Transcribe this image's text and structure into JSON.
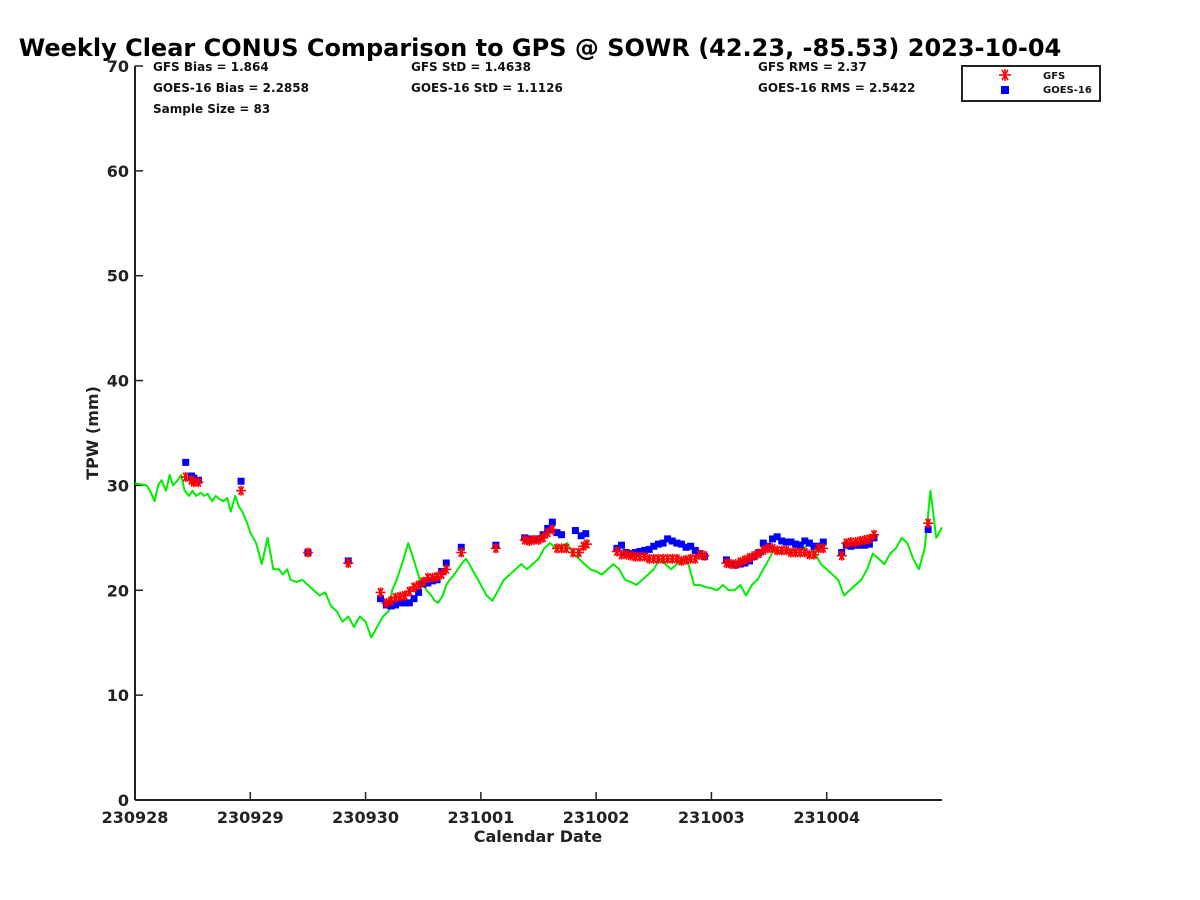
{
  "chart_data": {
    "type": "scatter",
    "title": "Weekly Clear CONUS Comparison to GPS @ SOWR (42.23, -85.53) 2023-10-04",
    "xlabel": "Calendar Date",
    "ylabel": "TPW (mm)",
    "xlim": [
      0,
      7.0
    ],
    "ylim": [
      0,
      70
    ],
    "x_tick_labels": [
      "230928",
      "230929",
      "230930",
      "231001",
      "231002",
      "231003",
      "231004"
    ],
    "x_tick_values": [
      0,
      1,
      2,
      3,
      4,
      5,
      6
    ],
    "y_ticks": [
      0,
      10,
      20,
      30,
      40,
      50,
      60,
      70
    ],
    "stats": [
      {
        "label": "GFS Bias = 1.864"
      },
      {
        "label": "GOES-16 Bias = 2.2858"
      },
      {
        "label": "Sample Size = 83"
      },
      {
        "label": "GFS StD = 1.4638"
      },
      {
        "label": "GOES-16 StD = 1.1126"
      },
      {
        "label": "GFS RMS = 2.37"
      },
      {
        "label": "GOES-16 RMS = 2.5422"
      }
    ],
    "legend": {
      "placement": "top-right",
      "entries": [
        {
          "name": "GFS",
          "marker": "asterisk",
          "color": "#ff0000"
        },
        {
          "name": "GOES-16",
          "marker": "square",
          "color": "#0000ff"
        }
      ]
    },
    "colors": {
      "gfs": "#ff0000",
      "goes": "#0000ff",
      "gps": "#00ee00"
    },
    "series": [
      {
        "name": "GFS",
        "x": [
          0.44,
          0.49,
          0.51,
          0.55,
          0.92,
          1.5,
          1.85,
          2.13,
          2.18,
          2.22,
          2.26,
          2.3,
          2.34,
          2.38,
          2.42,
          2.46,
          2.5,
          2.54,
          2.58,
          2.62,
          2.66,
          2.7,
          2.83,
          3.13,
          3.38,
          3.42,
          3.46,
          3.5,
          3.54,
          3.58,
          3.62,
          3.66,
          3.7,
          3.74,
          3.8,
          3.85,
          3.89,
          3.92,
          4.18,
          4.22,
          4.26,
          4.3,
          4.34,
          4.38,
          4.42,
          4.46,
          4.5,
          4.54,
          4.58,
          4.62,
          4.66,
          4.7,
          4.74,
          4.78,
          4.82,
          4.86,
          4.9,
          4.94,
          5.13,
          5.17,
          5.21,
          5.25,
          5.29,
          5.33,
          5.37,
          5.41,
          5.45,
          5.49,
          5.53,
          5.57,
          5.61,
          5.65,
          5.69,
          5.73,
          5.77,
          5.81,
          5.85,
          5.89,
          5.93,
          5.97,
          6.13,
          6.17,
          6.21,
          6.25,
          6.29,
          6.33,
          6.37,
          6.41,
          6.88
        ],
        "y": [
          30.8,
          30.5,
          30.3,
          30.3,
          29.5,
          23.6,
          22.6,
          19.8,
          18.8,
          19.0,
          19.3,
          19.4,
          19.5,
          19.9,
          20.3,
          20.5,
          20.8,
          21.2,
          21.2,
          21.3,
          21.5,
          22.0,
          23.6,
          24.0,
          24.8,
          24.7,
          24.8,
          24.8,
          25.0,
          25.5,
          25.8,
          24.0,
          24.0,
          24.0,
          23.6,
          23.6,
          24.2,
          24.4,
          23.7,
          23.4,
          23.4,
          23.3,
          23.2,
          23.2,
          23.2,
          23.0,
          23.0,
          23.0,
          23.0,
          23.0,
          23.0,
          23.0,
          22.8,
          22.9,
          23.0,
          23.0,
          23.4,
          23.3,
          22.6,
          22.5,
          22.5,
          22.7,
          22.9,
          23.1,
          23.3,
          23.5,
          23.8,
          24.0,
          24.0,
          23.8,
          23.8,
          23.8,
          23.6,
          23.6,
          23.6,
          23.6,
          23.4,
          23.4,
          24.0,
          24.0,
          23.3,
          24.5,
          24.6,
          24.6,
          24.7,
          24.8,
          24.9,
          25.3,
          26.4
        ]
      },
      {
        "name": "GOES-16",
        "x": [
          0.44,
          0.49,
          0.51,
          0.55,
          0.92,
          1.5,
          1.85,
          2.13,
          2.18,
          2.22,
          2.26,
          2.3,
          2.34,
          2.38,
          2.42,
          2.46,
          2.5,
          2.54,
          2.58,
          2.62,
          2.66,
          2.7,
          2.83,
          3.13,
          3.38,
          3.42,
          3.46,
          3.5,
          3.54,
          3.58,
          3.62,
          3.66,
          3.7,
          3.82,
          3.87,
          3.91,
          4.18,
          4.22,
          4.26,
          4.3,
          4.34,
          4.38,
          4.42,
          4.46,
          4.5,
          4.54,
          4.58,
          4.62,
          4.66,
          4.7,
          4.74,
          4.78,
          4.82,
          4.86,
          4.9,
          4.94,
          5.13,
          5.17,
          5.21,
          5.25,
          5.29,
          5.33,
          5.37,
          5.41,
          5.45,
          5.49,
          5.53,
          5.57,
          5.61,
          5.65,
          5.69,
          5.73,
          5.77,
          5.81,
          5.85,
          5.89,
          5.93,
          5.97,
          6.13,
          6.17,
          6.21,
          6.25,
          6.29,
          6.33,
          6.37,
          6.41,
          6.88
        ],
        "y": [
          32.2,
          30.9,
          30.7,
          30.5,
          30.4,
          23.6,
          22.8,
          19.2,
          18.6,
          18.5,
          18.6,
          18.8,
          18.8,
          18.8,
          19.2,
          19.8,
          20.6,
          20.7,
          20.9,
          21.0,
          21.8,
          22.6,
          24.1,
          24.3,
          25.0,
          24.9,
          24.8,
          24.9,
          25.3,
          25.9,
          26.5,
          25.5,
          25.3,
          25.7,
          25.2,
          25.4,
          24.0,
          24.3,
          23.6,
          23.5,
          23.6,
          23.7,
          23.8,
          23.9,
          24.2,
          24.4,
          24.5,
          24.9,
          24.7,
          24.5,
          24.4,
          24.1,
          24.2,
          23.8,
          23.5,
          23.2,
          22.9,
          22.5,
          22.4,
          22.5,
          22.6,
          22.8,
          23.2,
          23.6,
          24.5,
          24.2,
          24.9,
          25.1,
          24.7,
          24.6,
          24.6,
          24.4,
          24.3,
          24.7,
          24.5,
          24.2,
          24.2,
          24.6,
          23.6,
          24.3,
          24.2,
          24.3,
          24.3,
          24.3,
          24.4,
          25.0,
          25.8
        ]
      },
      {
        "name": "GPS",
        "x": [
          0.0,
          0.05,
          0.1,
          0.13,
          0.17,
          0.2,
          0.23,
          0.27,
          0.3,
          0.33,
          0.37,
          0.4,
          0.43,
          0.47,
          0.5,
          0.53,
          0.57,
          0.6,
          0.63,
          0.67,
          0.7,
          0.73,
          0.77,
          0.8,
          0.83,
          0.87,
          0.9,
          0.93,
          0.97,
          1.0,
          1.05,
          1.1,
          1.15,
          1.2,
          1.25,
          1.28,
          1.32,
          1.35,
          1.4,
          1.45,
          1.5,
          1.55,
          1.6,
          1.65,
          1.7,
          1.75,
          1.8,
          1.85,
          1.9,
          1.95,
          2.0,
          2.05,
          2.1,
          2.15,
          2.2,
          2.23,
          2.27,
          2.3,
          2.33,
          2.37,
          2.4,
          2.43,
          2.47,
          2.5,
          2.53,
          2.57,
          2.6,
          2.63,
          2.67,
          2.7,
          2.73,
          2.77,
          2.8,
          2.83,
          2.87,
          2.9,
          2.95,
          3.0,
          3.05,
          3.1,
          3.15,
          3.2,
          3.25,
          3.3,
          3.35,
          3.4,
          3.45,
          3.5,
          3.55,
          3.6,
          3.65,
          3.7,
          3.75,
          3.8,
          3.85,
          3.9,
          3.95,
          4.0,
          4.05,
          4.1,
          4.15,
          4.2,
          4.25,
          4.3,
          4.35,
          4.4,
          4.45,
          4.5,
          4.55,
          4.6,
          4.65,
          4.7,
          4.75,
          4.8,
          4.85,
          4.9,
          4.95,
          5.0,
          5.05,
          5.1,
          5.15,
          5.2,
          5.25,
          5.3,
          5.35,
          5.4,
          5.45,
          5.5,
          5.55,
          5.6,
          5.65,
          5.7,
          5.75,
          5.8,
          5.85,
          5.9,
          5.95,
          6.0,
          6.05,
          6.1,
          6.15,
          6.2,
          6.25,
          6.3,
          6.35,
          6.4,
          6.45,
          6.5,
          6.55,
          6.6,
          6.65,
          6.7,
          6.75,
          6.8,
          6.85,
          6.9,
          6.95,
          7.0
        ],
        "y": [
          30.2,
          30.1,
          30.0,
          29.5,
          28.5,
          30.0,
          30.5,
          29.5,
          31.0,
          30.0,
          30.5,
          31.0,
          29.5,
          29.0,
          29.5,
          29.0,
          29.3,
          29.0,
          29.2,
          28.5,
          29.0,
          28.7,
          28.5,
          28.8,
          27.5,
          29.0,
          28.0,
          27.5,
          26.5,
          25.5,
          24.5,
          22.5,
          25.0,
          22.0,
          22.0,
          21.5,
          22.0,
          21.0,
          20.8,
          21.0,
          20.5,
          20.0,
          19.5,
          19.8,
          18.5,
          18.0,
          17.0,
          17.5,
          16.5,
          17.5,
          17.0,
          15.5,
          16.5,
          17.5,
          18.0,
          20.0,
          21.0,
          22.0,
          23.0,
          24.5,
          23.5,
          22.5,
          21.0,
          20.5,
          20.0,
          19.5,
          19.0,
          18.8,
          19.5,
          20.5,
          21.0,
          21.5,
          22.0,
          22.5,
          23.0,
          22.5,
          21.5,
          20.5,
          19.5,
          19.0,
          20.0,
          21.0,
          21.5,
          22.0,
          22.5,
          22.0,
          22.5,
          23.0,
          24.0,
          24.5,
          24.0,
          24.2,
          24.5,
          23.5,
          23.0,
          22.5,
          22.0,
          21.8,
          21.5,
          22.0,
          22.5,
          22.0,
          21.0,
          20.8,
          20.5,
          21.0,
          21.5,
          22.0,
          23.0,
          22.5,
          22.0,
          22.5,
          23.0,
          22.5,
          20.5,
          20.5,
          20.3,
          20.2,
          20.0,
          20.5,
          20.0,
          20.0,
          20.5,
          19.5,
          20.5,
          21.0,
          22.0,
          23.0,
          24.0,
          23.5,
          24.0,
          23.5,
          24.5,
          24.0,
          24.5,
          23.5,
          22.5,
          22.0,
          21.5,
          21.0,
          19.5,
          20.0,
          20.5,
          21.0,
          22.0,
          23.5,
          23.0,
          22.5,
          23.5,
          24.0,
          25.0,
          24.5,
          23.0,
          22.0,
          24.0,
          29.5,
          25.0,
          26.0
        ]
      }
    ]
  }
}
